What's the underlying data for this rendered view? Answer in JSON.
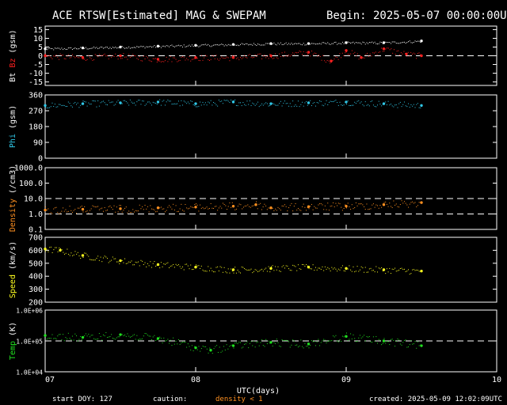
{
  "title_left": "ACE RTSW[Estimated] MAG & SWEPAM",
  "title_right": "Begin: 2025-05-07 00:00:00UTC",
  "xaxis_label": "UTC(days)",
  "footer": {
    "start": "start DOY: 127",
    "caution": "caution:",
    "density_note": "density < 1",
    "created": "created: 2025-05-09 12:02:09UTC"
  },
  "colors": {
    "bt": "#ffffff",
    "bz": "#ff2020",
    "phi": "#30c8e8",
    "density": "#ff9020",
    "speed": "#ffff20",
    "temp": "#20e020",
    "axis": "#ffffff",
    "bg": "#000000"
  },
  "chart_data": [
    {
      "type": "scatter",
      "panel": "mag",
      "ylabel": "Bt Bz (gsm)",
      "ylabel_parts": [
        "Bt",
        "Bz",
        "(gsm)"
      ],
      "yticks": [
        "15",
        "10",
        "5",
        "0",
        "-5",
        "-10",
        "-15"
      ],
      "yticks_values": [
        15,
        10,
        5,
        0,
        -5,
        -10,
        -15
      ],
      "ylim": [
        -17,
        17
      ],
      "dashed_lines": [
        0
      ],
      "xticks": [
        "07",
        "08",
        "09",
        "10"
      ],
      "xlim": [
        0,
        3
      ],
      "series": [
        {
          "name": "Bt",
          "x": [
            0.0,
            0.25,
            0.5,
            0.75,
            1.0,
            1.25,
            1.5,
            1.75,
            2.0,
            2.25,
            2.5
          ],
          "values": [
            4,
            4.5,
            5,
            5.5,
            6,
            6.5,
            7,
            7,
            7.5,
            7.5,
            8.5
          ]
        },
        {
          "name": "Bz",
          "x": [
            0.0,
            0.25,
            0.5,
            0.75,
            1.0,
            1.25,
            1.5,
            1.75,
            1.9,
            2.0,
            2.1,
            2.25,
            2.4,
            2.5
          ],
          "values": [
            0,
            -1,
            0,
            -2,
            -1,
            -1,
            0,
            2,
            -3,
            3,
            -1,
            4,
            1,
            0
          ]
        }
      ]
    },
    {
      "type": "scatter",
      "panel": "phi",
      "ylabel": "Phi (gsm)",
      "yticks": [
        "360",
        "270",
        "180",
        "90",
        "0"
      ],
      "yticks_values": [
        360,
        270,
        180,
        90,
        0
      ],
      "ylim": [
        0,
        360
      ],
      "xticks": [
        "07",
        "08",
        "09",
        "10"
      ],
      "xlim": [
        0,
        3
      ],
      "series": [
        {
          "name": "Phi",
          "x": [
            0.0,
            0.25,
            0.5,
            0.75,
            1.0,
            1.25,
            1.5,
            1.75,
            2.0,
            2.25,
            2.5
          ],
          "values": [
            300,
            310,
            315,
            320,
            310,
            320,
            310,
            315,
            320,
            310,
            300
          ]
        }
      ]
    },
    {
      "type": "scatter",
      "panel": "density",
      "ylabel": "Density (/cm3)",
      "yscale": "log",
      "yticks": [
        "1000.0",
        "100.0",
        "10.0",
        "1.0",
        "0.1"
      ],
      "yticks_values": [
        1000,
        100,
        10,
        1,
        0.1
      ],
      "ylim": [
        0.1,
        1000
      ],
      "dashed_lines": [
        1,
        10
      ],
      "xticks": [
        "07",
        "08",
        "09",
        "10"
      ],
      "xlim": [
        0,
        3
      ],
      "series": [
        {
          "name": "Density",
          "x": [
            0.0,
            0.25,
            0.5,
            0.75,
            1.0,
            1.25,
            1.4,
            1.5,
            1.75,
            2.0,
            2.25,
            2.5
          ],
          "values": [
            1.8,
            2.0,
            2.2,
            2.5,
            2.8,
            3.2,
            4,
            2.5,
            3.0,
            3.2,
            4.0,
            5.5
          ]
        }
      ]
    },
    {
      "type": "scatter",
      "panel": "speed",
      "ylabel": "Speed (km/s)",
      "yticks": [
        "700",
        "600",
        "500",
        "400",
        "300",
        "200"
      ],
      "yticks_values": [
        700,
        600,
        500,
        400,
        300,
        200
      ],
      "ylim": [
        200,
        700
      ],
      "xticks": [
        "07",
        "08",
        "09",
        "10"
      ],
      "xlim": [
        0,
        3
      ],
      "series": [
        {
          "name": "Speed",
          "x": [
            0.0,
            0.1,
            0.25,
            0.5,
            0.75,
            1.0,
            1.25,
            1.5,
            1.75,
            2.0,
            2.25,
            2.5
          ],
          "values": [
            610,
            600,
            560,
            520,
            490,
            470,
            450,
            460,
            470,
            460,
            450,
            440
          ]
        }
      ]
    },
    {
      "type": "scatter",
      "panel": "temp",
      "ylabel": "Temp (K)",
      "yscale": "log",
      "yticks": [
        "1.0E+06",
        "1.0E+05",
        "1.0E+04"
      ],
      "yticks_values": [
        1000000,
        100000,
        10000
      ],
      "ylim": [
        10000,
        1000000
      ],
      "dashed_lines": [
        100000
      ],
      "xticks": [
        "07",
        "08",
        "09",
        "10"
      ],
      "xlim": [
        0,
        3
      ],
      "series": [
        {
          "name": "Temp",
          "x": [
            0.0,
            0.25,
            0.5,
            0.75,
            1.0,
            1.1,
            1.25,
            1.5,
            1.75,
            2.0,
            2.25,
            2.5
          ],
          "values": [
            150000,
            130000,
            160000,
            120000,
            60000,
            50000,
            70000,
            90000,
            80000,
            140000,
            100000,
            70000
          ]
        }
      ]
    }
  ]
}
